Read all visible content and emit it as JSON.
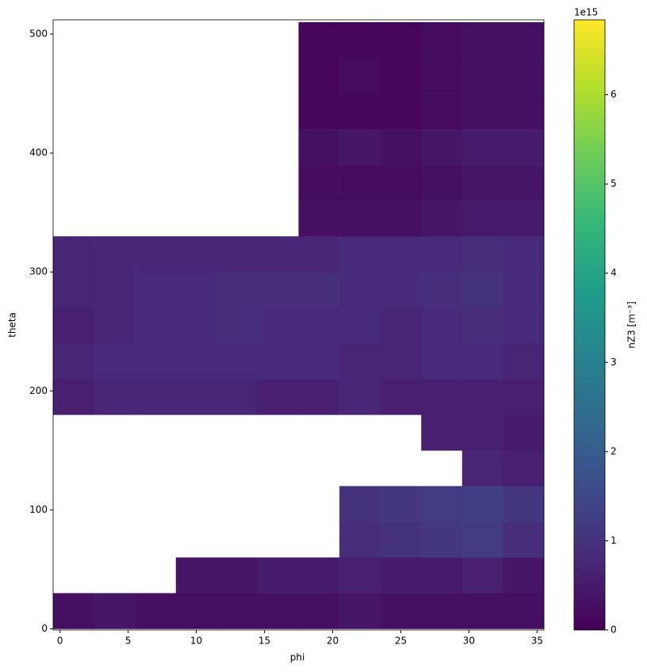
{
  "chart_data": {
    "type": "heatmap",
    "x_label": "phi",
    "y_label": "theta",
    "colorbar_label": "nZ3 [m⁻³]",
    "colorbar_offset_text": "1e15",
    "colormap": "viridis",
    "x_bins": [
      -0.5,
      2.5,
      5.5,
      8.5,
      11.5,
      14.5,
      17.5,
      20.5,
      23.5,
      26.5,
      29.5,
      32.5,
      35.5
    ],
    "y_bins": [
      0,
      30,
      60,
      90,
      120,
      150,
      180,
      210,
      240,
      270,
      300,
      330,
      360,
      390,
      420,
      450,
      480,
      510
    ],
    "values": [
      [
        300000000000000.0,
        400000000000000.0,
        300000000000000.0,
        300000000000000.0,
        300000000000000.0,
        300000000000000.0,
        300000000000000.0,
        400000000000000.0,
        300000000000000.0,
        300000000000000.0,
        300000000000000.0,
        300000000000000.0
      ],
      [
        null,
        null,
        null,
        400000000000000.0,
        400000000000000.0,
        500000000000000.0,
        500000000000000.0,
        600000000000000.0,
        500000000000000.0,
        500000000000000.0,
        600000000000000.0,
        400000000000000.0
      ],
      [
        null,
        null,
        null,
        null,
        null,
        null,
        null,
        900000000000000.0,
        1000000000000000.0,
        1100000000000000.0,
        1200000000000000.0,
        900000000000000.0
      ],
      [
        null,
        null,
        null,
        null,
        null,
        null,
        null,
        1000000000000000.0,
        1100000000000000.0,
        1200000000000000.0,
        1300000000000000.0,
        1100000000000000.0
      ],
      [
        null,
        null,
        null,
        null,
        null,
        null,
        null,
        null,
        null,
        null,
        700000000000000.0,
        600000000000000.0
      ],
      [
        null,
        null,
        null,
        null,
        null,
        null,
        null,
        null,
        null,
        600000000000000.0,
        600000000000000.0,
        500000000000000.0
      ],
      [
        600000000000000.0,
        700000000000000.0,
        700000000000000.0,
        700000000000000.0,
        700000000000000.0,
        600000000000000.0,
        600000000000000.0,
        700000000000000.0,
        600000000000000.0,
        600000000000000.0,
        600000000000000.0,
        600000000000000.0
      ],
      [
        700000000000000.0,
        800000000000000.0,
        800000000000000.0,
        800000000000000.0,
        800000000000000.0,
        800000000000000.0,
        800000000000000.0,
        700000000000000.0,
        700000000000000.0,
        800000000000000.0,
        800000000000000.0,
        700000000000000.0
      ],
      [
        600000000000000.0,
        700000000000000.0,
        800000000000000.0,
        800000000000000.0,
        900000000000000.0,
        800000000000000.0,
        800000000000000.0,
        800000000000000.0,
        700000000000000.0,
        800000000000000.0,
        900000000000000.0,
        800000000000000.0
      ],
      [
        700000000000000.0,
        700000000000000.0,
        800000000000000.0,
        800000000000000.0,
        900000000000000.0,
        900000000000000.0,
        900000000000000.0,
        800000000000000.0,
        800000000000000.0,
        900000000000000.0,
        1000000000000000.0,
        800000000000000.0
      ],
      [
        700000000000000.0,
        700000000000000.0,
        700000000000000.0,
        700000000000000.0,
        700000000000000.0,
        700000000000000.0,
        700000000000000.0,
        800000000000000.0,
        800000000000000.0,
        800000000000000.0,
        900000000000000.0,
        800000000000000.0
      ],
      [
        null,
        null,
        null,
        null,
        null,
        null,
        300000000000000.0,
        300000000000000.0,
        300000000000000.0,
        400000000000000.0,
        500000000000000.0,
        500000000000000.0
      ],
      [
        null,
        null,
        null,
        null,
        null,
        null,
        200000000000000.0,
        200000000000000.0,
        200000000000000.0,
        300000000000000.0,
        400000000000000.0,
        400000000000000.0
      ],
      [
        null,
        null,
        null,
        null,
        null,
        null,
        300000000000000.0,
        400000000000000.0,
        300000000000000.0,
        400000000000000.0,
        500000000000000.0,
        500000000000000.0
      ],
      [
        null,
        null,
        null,
        null,
        null,
        null,
        100000000000000.0,
        100000000000000.0,
        100000000000000.0,
        200000000000000.0,
        300000000000000.0,
        300000000000000.0
      ],
      [
        null,
        null,
        null,
        null,
        null,
        null,
        100000000000000.0,
        200000000000000.0,
        100000000000000.0,
        200000000000000.0,
        300000000000000.0,
        300000000000000.0
      ],
      [
        null,
        null,
        null,
        null,
        null,
        null,
        100000000000000.0,
        100000000000000.0,
        100000000000000.0,
        200000000000000.0,
        300000000000000.0,
        300000000000000.0
      ]
    ],
    "xlim": [
      -0.5,
      35.5
    ],
    "ylim": [
      -1,
      512
    ],
    "xticks": [
      0,
      5,
      10,
      15,
      20,
      25,
      30,
      35
    ],
    "yticks": [
      0,
      100,
      200,
      300,
      400,
      500
    ],
    "zlim": [
      0,
      6840000000000000.0
    ],
    "zticks": [
      {
        "value": 0,
        "label": "0"
      },
      {
        "value": 1000000000000000.0,
        "label": "1"
      },
      {
        "value": 2000000000000000.0,
        "label": "2"
      },
      {
        "value": 3000000000000000.0,
        "label": "3"
      },
      {
        "value": 4000000000000000.0,
        "label": "4"
      },
      {
        "value": 5000000000000000.0,
        "label": "5"
      },
      {
        "value": 6000000000000000.0,
        "label": "6"
      }
    ]
  }
}
